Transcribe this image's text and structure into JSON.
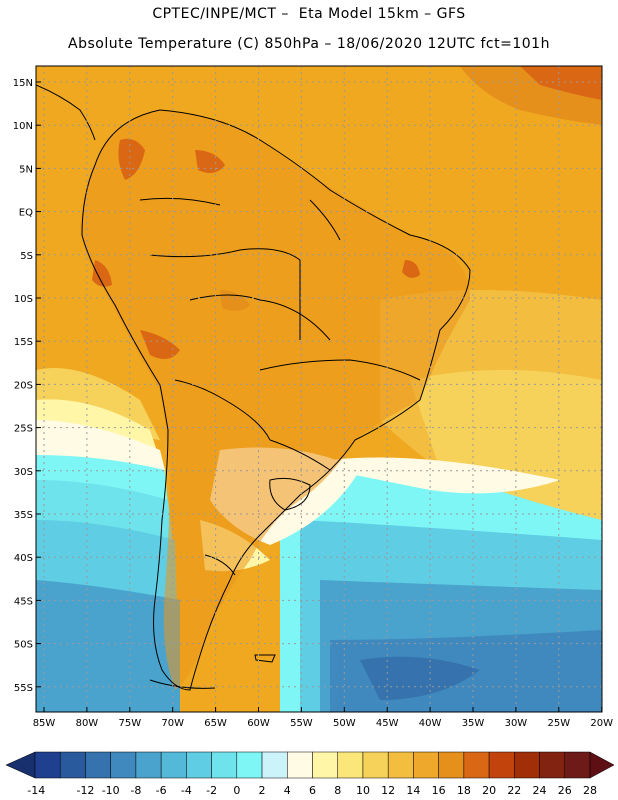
{
  "title_line1": "CPTEC/INPE/MCT –  Eta Model 15km – GFS",
  "title_line2": "Absolute Temperature (C) 850hPa – 18/06/2020 12UTC fct=101h",
  "map": {
    "lat_labels": [
      "15N",
      "10N",
      "5N",
      "EQ",
      "5S",
      "10S",
      "15S",
      "20S",
      "25S",
      "30S",
      "35S",
      "40S",
      "45S",
      "50S",
      "55S"
    ],
    "lon_labels": [
      "85W",
      "80W",
      "75W",
      "70W",
      "65W",
      "60W",
      "55W",
      "50W",
      "45W",
      "40W",
      "35W",
      "30W",
      "25W",
      "20W"
    ]
  },
  "colorbar": {
    "labels": [
      "-14",
      "-12",
      "-10",
      "-8",
      "-6",
      "-4",
      "-2",
      "0",
      "2",
      "4",
      "6",
      "8",
      "10",
      "12",
      "14",
      "16",
      "18",
      "20",
      "22",
      "24",
      "26",
      "28"
    ],
    "colors": [
      "#1f3f8f",
      "#2a5a9e",
      "#3572ae",
      "#3f89be",
      "#4aa3cc",
      "#54b9d8",
      "#5fcde3",
      "#6fe3ec",
      "#7ef6f6",
      "#cdf3fa",
      "#fffbe4",
      "#fff6a8",
      "#fbe67a",
      "#f7d25a",
      "#f3bd3f",
      "#eea82c",
      "#e6901c",
      "#d96714",
      "#c2440c",
      "#a02f08",
      "#822210",
      "#6d1a18"
    ],
    "under_color": "#18306e",
    "over_color": "#5e0f14"
  },
  "colors": {
    "ocean_warm": "#efa820",
    "ocean_hot": "#e0801c",
    "land": "#eb961c"
  }
}
